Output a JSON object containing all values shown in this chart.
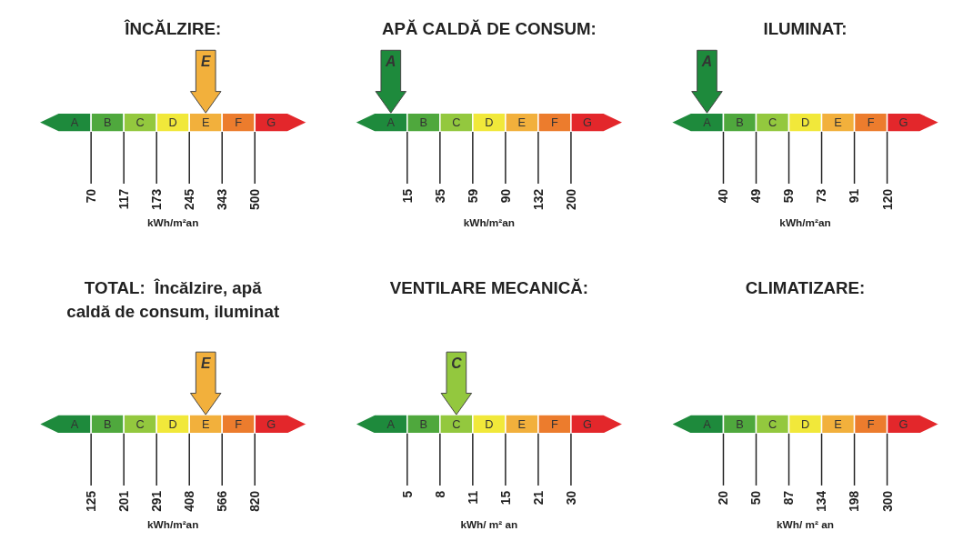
{
  "chart_data": [
    {
      "type": "other",
      "title": "ÎNCĂLZIRE:",
      "categories": [
        "A",
        "B",
        "C",
        "D",
        "E",
        "F",
        "G"
      ],
      "colors": [
        "#1e8a3c",
        "#4fa83d",
        "#93c83e",
        "#f1e83a",
        "#f2b03c",
        "#ec7c2d",
        "#e3272b"
      ],
      "values": [
        70,
        117,
        173,
        245,
        343,
        500,
        null
      ],
      "data_labels": true,
      "xlabel": "kWh/m²an",
      "needle": "E"
    },
    {
      "type": "other",
      "title": "APĂ CALDĂ DE CONSUM:",
      "categories": [
        "A",
        "B",
        "C",
        "D",
        "E",
        "F",
        "G"
      ],
      "colors": [
        "#1e8a3c",
        "#4fa83d",
        "#93c83e",
        "#f1e83a",
        "#f2b03c",
        "#ec7c2d",
        "#e3272b"
      ],
      "values": [
        15,
        35,
        59,
        90,
        132,
        200,
        null
      ],
      "data_labels": true,
      "xlabel": "kWh/m²an",
      "needle": "A"
    },
    {
      "type": "other",
      "title": "ILUMINAT:",
      "categories": [
        "A",
        "B",
        "C",
        "D",
        "E",
        "F",
        "G"
      ],
      "colors": [
        "#1e8a3c",
        "#4fa83d",
        "#93c83e",
        "#f1e83a",
        "#f2b03c",
        "#ec7c2d",
        "#e3272b"
      ],
      "values": [
        40,
        49,
        59,
        73,
        91,
        120,
        null
      ],
      "data_labels": true,
      "xlabel": "kWh/m²an",
      "needle": "A"
    },
    {
      "type": "other",
      "title": "TOTAL:  Încălzire, apă caldă de consum, iluminat",
      "categories": [
        "A",
        "B",
        "C",
        "D",
        "E",
        "F",
        "G"
      ],
      "colors": [
        "#1e8a3c",
        "#4fa83d",
        "#93c83e",
        "#f1e83a",
        "#f2b03c",
        "#ec7c2d",
        "#e3272b"
      ],
      "values": [
        125,
        201,
        291,
        408,
        566,
        820,
        null
      ],
      "data_labels": true,
      "xlabel": "kWh/m²an",
      "needle": "E"
    },
    {
      "type": "other",
      "title": "VENTILARE MECANICĂ:",
      "categories": [
        "A",
        "B",
        "C",
        "D",
        "E",
        "F",
        "G"
      ],
      "colors": [
        "#1e8a3c",
        "#4fa83d",
        "#93c83e",
        "#f1e83a",
        "#f2b03c",
        "#ec7c2d",
        "#e3272b"
      ],
      "values": [
        5,
        8,
        11,
        15,
        21,
        30,
        null
      ],
      "data_labels": true,
      "xlabel": "kWh/ m² an",
      "needle": "C"
    },
    {
      "type": "other",
      "title": "CLIMATIZARE:",
      "categories": [
        "A",
        "B",
        "C",
        "D",
        "E",
        "F",
        "G"
      ],
      "colors": [
        "#1e8a3c",
        "#4fa83d",
        "#93c83e",
        "#f1e83a",
        "#f2b03c",
        "#ec7c2d",
        "#e3272b"
      ],
      "values": [
        20,
        50,
        87,
        134,
        198,
        300,
        null
      ],
      "data_labels": true,
      "xlabel": "kWh/ m² an"
    }
  ]
}
